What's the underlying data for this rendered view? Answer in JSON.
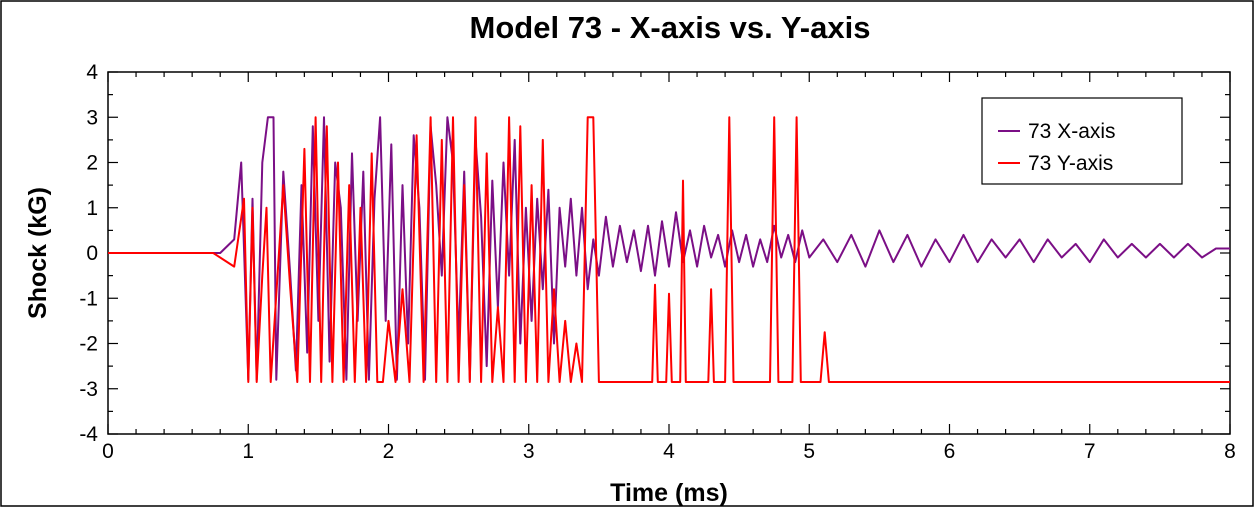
{
  "chart_data": {
    "type": "line",
    "title": "Model 73  -  X-axis vs. Y-axis",
    "xlabel": "Time  (ms)",
    "ylabel": "Shock  (kG)",
    "xlim": [
      0,
      8
    ],
    "ylim": [
      -4,
      4
    ],
    "xticks": [
      "0",
      "1",
      "2",
      "3",
      "4",
      "5",
      "6",
      "7",
      "8"
    ],
    "yticks": [
      "4",
      "3",
      "2",
      "1",
      "0",
      "-1",
      "-2",
      "-3",
      "-4"
    ],
    "grid": false,
    "legend_position": "top-right",
    "series": [
      {
        "name": "73 X-axis",
        "color": "#7b0f86",
        "x": [
          0,
          0.8,
          0.9,
          0.95,
          1.0,
          1.03,
          1.06,
          1.1,
          1.14,
          1.18,
          1.2,
          1.25,
          1.3,
          1.34,
          1.38,
          1.42,
          1.46,
          1.5,
          1.54,
          1.58,
          1.62,
          1.66,
          1.7,
          1.74,
          1.78,
          1.82,
          1.86,
          1.9,
          1.94,
          1.98,
          2.02,
          2.06,
          2.1,
          2.14,
          2.18,
          2.22,
          2.26,
          2.3,
          2.34,
          2.38,
          2.42,
          2.46,
          2.5,
          2.54,
          2.58,
          2.62,
          2.66,
          2.7,
          2.74,
          2.78,
          2.82,
          2.86,
          2.9,
          2.94,
          2.98,
          3.02,
          3.06,
          3.1,
          3.14,
          3.18,
          3.22,
          3.26,
          3.3,
          3.34,
          3.38,
          3.42,
          3.46,
          3.5,
          3.55,
          3.6,
          3.65,
          3.7,
          3.75,
          3.8,
          3.85,
          3.9,
          3.95,
          4.0,
          4.05,
          4.1,
          4.15,
          4.2,
          4.25,
          4.3,
          4.35,
          4.4,
          4.45,
          4.5,
          4.55,
          4.6,
          4.65,
          4.7,
          4.75,
          4.8,
          4.85,
          4.9,
          4.95,
          5.0,
          5.1,
          5.2,
          5.3,
          5.4,
          5.5,
          5.6,
          5.7,
          5.8,
          5.9,
          6.0,
          6.1,
          6.2,
          6.3,
          6.4,
          6.5,
          6.6,
          6.7,
          6.8,
          6.9,
          7.0,
          7.1,
          7.2,
          7.3,
          7.4,
          7.5,
          7.6,
          7.7,
          7.8,
          7.9,
          8.0
        ],
        "y": [
          0,
          0,
          0.3,
          2.0,
          -2.8,
          1.2,
          -2.8,
          2.0,
          3.0,
          3.0,
          -2.8,
          1.8,
          -0.5,
          -2.6,
          1.5,
          -2.2,
          2.8,
          -1.5,
          3.0,
          -2.4,
          2.0,
          1.0,
          -2.8,
          2.2,
          -1.5,
          1.8,
          -2.8,
          1.2,
          3.0,
          -1.5,
          2.4,
          -2.8,
          1.5,
          -2.0,
          2.6,
          1.0,
          -2.8,
          2.8,
          1.5,
          -0.5,
          3.0,
          2.0,
          -2.0,
          1.8,
          -2.8,
          2.5,
          0.8,
          -2.5,
          1.6,
          -1.2,
          2.0,
          -0.5,
          2.5,
          -2.0,
          1.0,
          -1.5,
          1.2,
          -0.8,
          1.4,
          -2.0,
          1.0,
          -0.3,
          1.2,
          -0.5,
          1.0,
          -0.8,
          0.3,
          -0.5,
          0.8,
          -0.3,
          0.6,
          -0.2,
          0.5,
          -0.4,
          0.6,
          -0.5,
          0.7,
          -0.3,
          0.9,
          -0.2,
          0.5,
          -0.3,
          0.6,
          -0.1,
          0.4,
          -0.3,
          0.5,
          -0.2,
          0.4,
          -0.3,
          0.3,
          -0.2,
          0.6,
          -0.1,
          0.4,
          -0.2,
          0.5,
          -0.1,
          0.3,
          -0.2,
          0.4,
          -0.3,
          0.5,
          -0.2,
          0.4,
          -0.3,
          0.3,
          -0.2,
          0.4,
          -0.2,
          0.3,
          -0.1,
          0.3,
          -0.2,
          0.3,
          -0.1,
          0.2,
          -0.2,
          0.3,
          -0.1,
          0.2,
          -0.1,
          0.2,
          -0.1,
          0.2,
          -0.1,
          0.1,
          0.1
        ]
      },
      {
        "name": "73 Y-axis",
        "color": "#ff0000",
        "x": [
          0,
          0.75,
          0.9,
          0.97,
          1.0,
          1.03,
          1.06,
          1.1,
          1.13,
          1.16,
          1.25,
          1.3,
          1.35,
          1.4,
          1.44,
          1.48,
          1.52,
          1.56,
          1.6,
          1.64,
          1.68,
          1.72,
          1.76,
          1.8,
          1.84,
          1.88,
          1.92,
          1.96,
          2.0,
          2.05,
          2.1,
          2.15,
          2.2,
          2.25,
          2.3,
          2.34,
          2.38,
          2.42,
          2.46,
          2.5,
          2.54,
          2.58,
          2.62,
          2.66,
          2.7,
          2.74,
          2.78,
          2.82,
          2.86,
          2.9,
          2.94,
          2.98,
          3.02,
          3.06,
          3.1,
          3.14,
          3.18,
          3.22,
          3.26,
          3.3,
          3.34,
          3.38,
          3.42,
          3.46,
          3.5,
          3.88,
          3.9,
          3.92,
          3.98,
          4.0,
          4.02,
          4.08,
          4.1,
          4.12,
          4.28,
          4.3,
          4.32,
          4.4,
          4.43,
          4.46,
          4.72,
          4.75,
          4.78,
          4.88,
          4.91,
          4.94,
          5.08,
          5.11,
          5.14,
          8.0
        ],
        "y": [
          0,
          0,
          -0.3,
          1.2,
          -2.85,
          1.0,
          -2.85,
          -0.5,
          1.0,
          -2.85,
          1.5,
          -0.8,
          -2.85,
          2.3,
          -2.85,
          3.0,
          -2.85,
          2.8,
          -2.85,
          2.0,
          -2.85,
          1.5,
          -2.85,
          1.0,
          -2.85,
          2.2,
          -2.85,
          -2.85,
          -1.5,
          -2.85,
          -0.8,
          -2.85,
          2.6,
          -2.85,
          3.0,
          -2.85,
          2.5,
          -2.85,
          3.0,
          -2.85,
          1.5,
          -2.85,
          3.0,
          -2.85,
          2.2,
          -2.85,
          -1.2,
          -2.85,
          3.0,
          -2.85,
          2.8,
          -2.85,
          1.5,
          -2.85,
          2.5,
          -2.85,
          -0.8,
          -2.85,
          -1.5,
          -2.85,
          -2.0,
          -2.85,
          3.0,
          3.0,
          -2.85,
          -2.85,
          -0.7,
          -2.85,
          -2.85,
          -0.9,
          -2.85,
          -2.85,
          1.6,
          -2.85,
          -2.85,
          -0.8,
          -2.85,
          -2.85,
          3.0,
          -2.85,
          -2.85,
          3.0,
          -2.85,
          -2.85,
          3.0,
          -2.85,
          -2.85,
          -1.75,
          -2.85,
          -2.85
        ]
      }
    ]
  }
}
